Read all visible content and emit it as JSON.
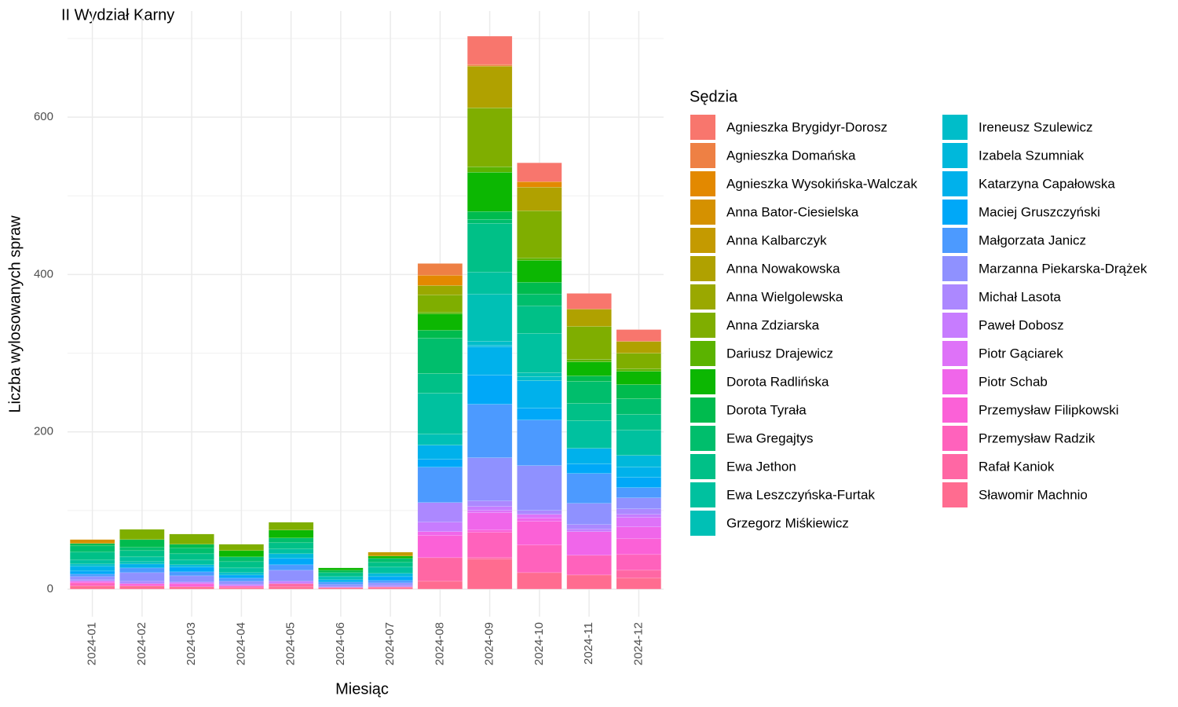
{
  "chart_data": {
    "type": "stacked_bar",
    "title": "II Wydział Karny",
    "x_label": "Miesiąc",
    "y_label": "Liczba wylosowanych spraw",
    "legend_title": "Sędzia",
    "categories": [
      "2024-01",
      "2024-02",
      "2024-03",
      "2024-04",
      "2024-05",
      "2024-06",
      "2024-07",
      "2024-08",
      "2024-09",
      "2024-10",
      "2024-11",
      "2024-12"
    ],
    "ylim": [
      -35,
      735
    ],
    "yticks": [
      0,
      200,
      400,
      600
    ],
    "grid": true,
    "legend_position": "right",
    "series": [
      {
        "name": "Agnieszka Brygidyr-Dorosz",
        "color": "#F8766D",
        "values": [
          0,
          0,
          0,
          0,
          0,
          0,
          0,
          0,
          36,
          24,
          20,
          15
        ]
      },
      {
        "name": "Agnieszka Domańska",
        "color": "#EE8044",
        "values": [
          0,
          0,
          0,
          0,
          0,
          0,
          0,
          15,
          2,
          0,
          0,
          0
        ]
      },
      {
        "name": "Agnieszka Wysokińska-Walczak",
        "color": "#E38900",
        "values": [
          0,
          0,
          0,
          0,
          0,
          0,
          0,
          13,
          0,
          7,
          0,
          0
        ]
      },
      {
        "name": "Anna Bator-Ciesielska",
        "color": "#D59100",
        "values": [
          5,
          0,
          0,
          0,
          0,
          0,
          0,
          0,
          0,
          0,
          0,
          0
        ]
      },
      {
        "name": "Anna Kalbarczyk",
        "color": "#C49A00",
        "values": [
          0,
          0,
          0,
          0,
          0,
          0,
          5,
          0,
          0,
          0,
          0,
          0
        ]
      },
      {
        "name": "Anna Nowakowska",
        "color": "#B0A100",
        "values": [
          0,
          0,
          0,
          0,
          0,
          0,
          0,
          0,
          53,
          30,
          22,
          15
        ]
      },
      {
        "name": "Anna Wielgolewska",
        "color": "#9AA800",
        "values": [
          0,
          0,
          0,
          0,
          0,
          0,
          0,
          12,
          0,
          0,
          0,
          0
        ]
      },
      {
        "name": "Anna Zdziarska",
        "color": "#7FAE00",
        "values": [
          0,
          13,
          13,
          8,
          10,
          0,
          0,
          22,
          75,
          60,
          42,
          20
        ]
      },
      {
        "name": "Dariusz Drajewicz",
        "color": "#5BB300",
        "values": [
          0,
          0,
          0,
          0,
          0,
          0,
          0,
          2,
          7,
          3,
          3,
          3
        ]
      },
      {
        "name": "Dorota Radlińska",
        "color": "#0CB702",
        "values": [
          0,
          0,
          0,
          8,
          10,
          3,
          3,
          21,
          50,
          28,
          18,
          17
        ]
      },
      {
        "name": "Dorota Tyrała",
        "color": "#00BB4E",
        "values": [
          3,
          10,
          5,
          0,
          0,
          3,
          0,
          10,
          10,
          15,
          7,
          18
        ]
      },
      {
        "name": "Ewa Gregajtys",
        "color": "#00BE6C",
        "values": [
          8,
          4,
          7,
          6,
          6,
          0,
          5,
          45,
          5,
          15,
          28,
          20
        ]
      },
      {
        "name": "Ewa Jethon",
        "color": "#00C087",
        "values": [
          10,
          8,
          8,
          8,
          8,
          5,
          6,
          25,
          62,
          35,
          22,
          20
        ]
      },
      {
        "name": "Ewa Leszczyńska-Furtak",
        "color": "#00C19F",
        "values": [
          5,
          6,
          6,
          6,
          6,
          0,
          8,
          52,
          28,
          50,
          35,
          32
        ]
      },
      {
        "name": "Grzegorz Miśkiewicz",
        "color": "#00C0B5",
        "values": [
          0,
          3,
          0,
          0,
          0,
          4,
          0,
          14,
          60,
          5,
          0,
          0
        ]
      },
      {
        "name": "Ireneusz Szulewicz",
        "color": "#00BDC9",
        "values": [
          3,
          0,
          0,
          3,
          0,
          0,
          0,
          0,
          5,
          5,
          0,
          0
        ]
      },
      {
        "name": "Izabela Szumniak",
        "color": "#00B8DB",
        "values": [
          0,
          0,
          3,
          0,
          6,
          0,
          4,
          0,
          2,
          0,
          0,
          15
        ]
      },
      {
        "name": "Katarzyna Capałowska",
        "color": "#00B1EB",
        "values": [
          6,
          5,
          0,
          0,
          0,
          3,
          0,
          18,
          36,
          35,
          20,
          13
        ]
      },
      {
        "name": "Maciej Gruszczyński",
        "color": "#00A8F8",
        "values": [
          4,
          0,
          6,
          4,
          8,
          0,
          5,
          10,
          37,
          15,
          12,
          13
        ]
      },
      {
        "name": "Małgorzata Janicz",
        "color": "#4C9AFF",
        "values": [
          3,
          6,
          5,
          4,
          7,
          3,
          3,
          45,
          68,
          58,
          38,
          13
        ]
      },
      {
        "name": "Marzanna Piekarska-Drążek",
        "color": "#8F91FF",
        "values": [
          4,
          11,
          8,
          4,
          14,
          3,
          3,
          0,
          55,
          57,
          27,
          14
        ]
      },
      {
        "name": "Michał Lasota",
        "color": "#AC88FF",
        "values": [
          2,
          3,
          0,
          0,
          0,
          0,
          2,
          25,
          7,
          5,
          6,
          7
        ]
      },
      {
        "name": "Paweł Dobosz",
        "color": "#C77CFF",
        "values": [
          0,
          0,
          2,
          2,
          3,
          1,
          0,
          12,
          5,
          0,
          3,
          4
        ]
      },
      {
        "name": "Piotr Gąciarek",
        "color": "#DE72F8",
        "values": [
          0,
          0,
          0,
          0,
          0,
          0,
          0,
          0,
          3,
          5,
          0,
          12
        ]
      },
      {
        "name": "Piotr Schab",
        "color": "#F066EA",
        "values": [
          2,
          0,
          0,
          0,
          0,
          0,
          0,
          5,
          22,
          4,
          30,
          15
        ]
      },
      {
        "name": "Przemysław Filipkowski",
        "color": "#FB61D7",
        "values": [
          0,
          3,
          4,
          0,
          0,
          0,
          0,
          28,
          3,
          30,
          0,
          20
        ]
      },
      {
        "name": "Przemysław Radzik",
        "color": "#FF62BC",
        "values": [
          4,
          0,
          0,
          2,
          0,
          0,
          0,
          0,
          32,
          35,
          25,
          20
        ]
      },
      {
        "name": "Rafał Kaniok",
        "color": "#FF67A4",
        "values": [
          0,
          0,
          0,
          0,
          4,
          0,
          1,
          30,
          2,
          0,
          0,
          10
        ]
      },
      {
        "name": "Sławomir Machnio",
        "color": "#FF6C90",
        "values": [
          4,
          4,
          3,
          2,
          3,
          2,
          2,
          10,
          38,
          21,
          18,
          14
        ]
      }
    ]
  }
}
